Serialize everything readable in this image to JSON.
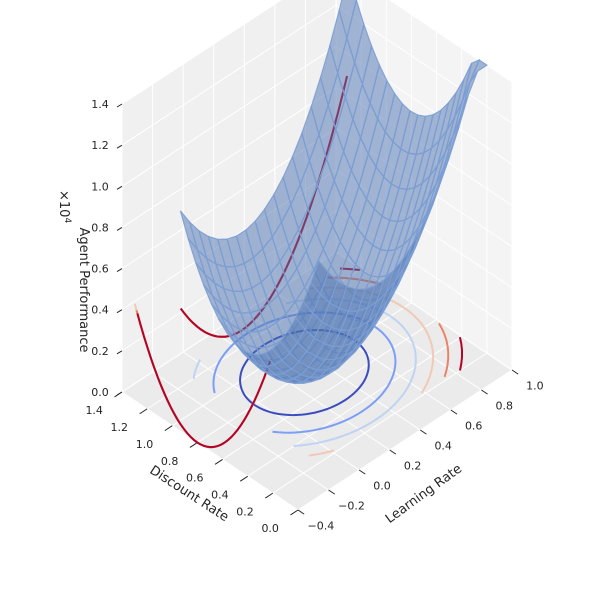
{
  "chart_data": {
    "type": "surface3d",
    "title": "",
    "xlabel": "Learning Rate",
    "ylabel": "Discount Rate",
    "zlabel": "Agent Performance",
    "z_offset_label": "×10",
    "z_offset_exponent": "4",
    "xlim": [
      -0.4,
      1.0
    ],
    "ylim": [
      0.0,
      1.4
    ],
    "zlim": [
      0,
      14000
    ],
    "x_ticks": [
      "−0.4",
      "−0.2",
      "0.0",
      "0.2",
      "0.4",
      "0.6",
      "0.8",
      "1.0"
    ],
    "y_ticks": [
      "0.0",
      "0.2",
      "0.4",
      "0.6",
      "0.8",
      "1.0",
      "1.2",
      "1.4"
    ],
    "z_ticks": [
      "0.0",
      "0.2",
      "0.4",
      "0.6",
      "0.8",
      "1.0",
      "1.2",
      "1.4"
    ],
    "surface": {
      "function": "paraboloid",
      "center_x": 0.3,
      "center_y": 0.8,
      "x_range": [
        -0.1,
        1.0
      ],
      "y_range": [
        0.2,
        1.3
      ],
      "min_value": 0,
      "max_value": 14000,
      "color": "#4c72b0",
      "wireframe_color": "#7c9fd4"
    },
    "contour_levels": [
      2000,
      4000,
      6000,
      8000,
      10000,
      12000
    ],
    "colormap": "coolwarm",
    "grid": true,
    "legend": "none"
  }
}
